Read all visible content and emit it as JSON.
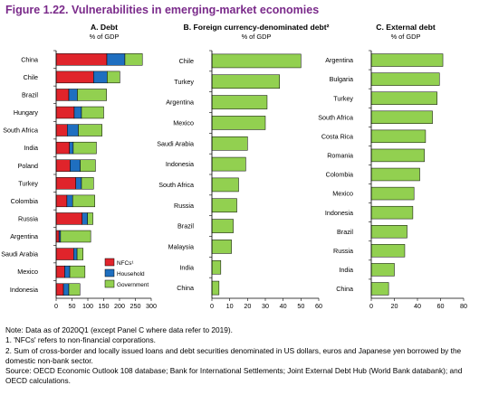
{
  "figure": {
    "title": "Figure 1.22. Vulnerabilities in emerging-market economies"
  },
  "colors": {
    "nfc": "#e0242b",
    "household": "#1f6fc0",
    "government": "#92d050",
    "axis": "#000000"
  },
  "chart_data": [
    {
      "type": "bar",
      "orientation": "horizontal",
      "stacked": true,
      "title": "A. Debt",
      "subtitle": "% of GDP",
      "categories": [
        "China",
        "Chile",
        "Brazil",
        "Hungary",
        "South Africa",
        "India",
        "Poland",
        "Turkey",
        "Colombia",
        "Russia",
        "Argentina",
        "Saudi Arabia",
        "Mexico",
        "Indonesia"
      ],
      "series": [
        {
          "name": "NFCs¹",
          "color": "#e0242b",
          "values": [
            160,
            118,
            40,
            57,
            35,
            42,
            44,
            62,
            34,
            82,
            9,
            55,
            27,
            23
          ]
        },
        {
          "name": "Household",
          "color": "#1f6fc0",
          "values": [
            57,
            43,
            27,
            23,
            35,
            12,
            32,
            18,
            18,
            17,
            5,
            11,
            16,
            17
          ]
        },
        {
          "name": "Government",
          "color": "#92d050",
          "values": [
            55,
            40,
            92,
            70,
            75,
            73,
            48,
            38,
            70,
            17,
            95,
            19,
            48,
            35
          ]
        }
      ],
      "xlim": [
        0,
        300
      ],
      "xticks": [
        "0",
        "50",
        "100",
        "150",
        "200",
        "250",
        "300"
      ],
      "legend": "bottom-right"
    },
    {
      "type": "bar",
      "orientation": "horizontal",
      "title": "B. Foreign currency-denominated debt²",
      "subtitle": "% of GDP",
      "categories": [
        "Chile",
        "Turkey",
        "Argentina",
        "Mexico",
        "Saudi Arabia",
        "Indonesia",
        "South Africa",
        "Russia",
        "Brazil",
        "Malaysia",
        "India",
        "China"
      ],
      "values": [
        50,
        38,
        31,
        30,
        20,
        19,
        15,
        14,
        12,
        11,
        5,
        4
      ],
      "color": "#92d050",
      "xlim": [
        0,
        60
      ],
      "xticks": [
        "0",
        "10",
        "20",
        "30",
        "40",
        "50",
        "60"
      ]
    },
    {
      "type": "bar",
      "orientation": "horizontal",
      "title": "C. External debt",
      "subtitle": "% of GDP",
      "categories": [
        "Argentina",
        "Bulgaria",
        "Turkey",
        "South Africa",
        "Costa Rica",
        "Romania",
        "Colombia",
        "Mexico",
        "Indonesia",
        "Brazil",
        "Russia",
        "India",
        "China"
      ],
      "values": [
        62,
        59,
        57,
        53,
        47,
        46,
        42,
        37,
        36,
        31,
        29,
        20,
        15
      ],
      "color": "#92d050",
      "xlim": [
        0,
        80
      ],
      "xticks": [
        "0",
        "20",
        "40",
        "60",
        "80"
      ]
    }
  ],
  "notes": {
    "line1": "Note: Data as of 2020Q1 (except Panel C where data refer to 2019).",
    "line2": "1. 'NFCs' refers to non-financial corporations.",
    "line3": "2. Sum of cross-border and locally issued loans and debt securities denominated in US dollars, euros and Japanese yen borrowed by the domestic non-bank sector.",
    "line4": "Source: OECD Economic Outlook 108 database; Bank for International Settlements; Joint External Debt Hub (World Bank databank); and OECD calculations."
  }
}
